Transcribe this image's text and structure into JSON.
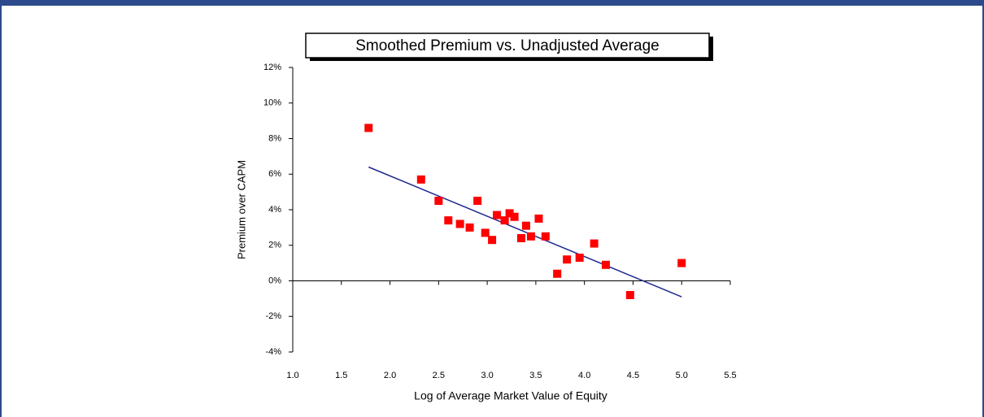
{
  "chart_data": {
    "type": "scatter",
    "title": "Smoothed Premium vs. Unadjusted Average",
    "x_label": "Log of Average Market Value of Equity",
    "y_label": "Premium over CAPM",
    "series": [
      {
        "color": "#ff0000",
        "x": [
          1.78,
          2.32,
          2.5,
          2.6,
          2.72,
          2.82,
          2.9,
          2.98,
          3.05,
          3.1,
          3.18,
          3.23,
          3.28,
          3.35,
          3.4,
          3.45,
          3.53,
          3.6,
          3.72,
          3.82,
          3.95,
          4.1,
          4.22,
          4.47,
          5.0
        ],
        "values": [
          8.6,
          5.7,
          4.5,
          3.4,
          3.2,
          3.0,
          4.5,
          2.7,
          2.3,
          3.7,
          3.4,
          3.8,
          3.6,
          2.4,
          3.1,
          2.5,
          3.5,
          2.5,
          0.4,
          1.2,
          1.3,
          2.1,
          0.9,
          -0.8,
          1.0
        ]
      }
    ],
    "trendline": {
      "color": "#1f2a8f",
      "x": [
        1.78,
        5.0
      ],
      "values": [
        6.4,
        -0.9
      ]
    },
    "xlim": [
      1.0,
      5.5
    ],
    "ylim": [
      -4,
      12
    ],
    "xticks": [
      {
        "value": 1.0,
        "label": "1.0"
      },
      {
        "value": 1.5,
        "label": "1.5"
      },
      {
        "value": 2.0,
        "label": "2.0"
      },
      {
        "value": 2.5,
        "label": "2.5"
      },
      {
        "value": 3.0,
        "label": "3.0"
      },
      {
        "value": 3.5,
        "label": "3.5"
      },
      {
        "value": 4.0,
        "label": "4.0"
      },
      {
        "value": 4.5,
        "label": "4.5"
      },
      {
        "value": 5.0,
        "label": "5.0"
      },
      {
        "value": 5.5,
        "label": "5.5"
      }
    ],
    "yticks": [
      {
        "value": -4,
        "label": "-4%"
      },
      {
        "value": -2,
        "label": "-2%"
      },
      {
        "value": 0,
        "label": "0%"
      },
      {
        "value": 2,
        "label": "2%"
      },
      {
        "value": 4,
        "label": "4%"
      },
      {
        "value": 6,
        "label": "6%"
      },
      {
        "value": 8,
        "label": "8%"
      },
      {
        "value": 10,
        "label": "10%"
      },
      {
        "value": 12,
        "label": "12%"
      }
    ]
  }
}
